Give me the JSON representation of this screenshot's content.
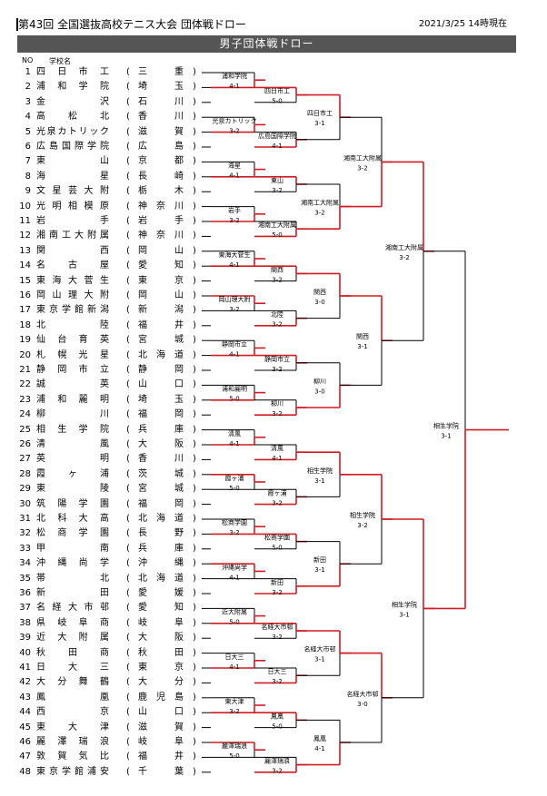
{
  "header": {
    "title": "第43回 全国選抜高校テニス大会 団体戦ドロー",
    "date": "2021/3/25 14時現在",
    "bar_title": "男子団体戦ドロー",
    "col_no": "NO",
    "col_school": "学校名"
  },
  "paren_open": "(",
  "paren_close": ")",
  "entries": [
    {
      "no": "1",
      "school": "四日市工",
      "pref": "三重"
    },
    {
      "no": "2",
      "school": "浦和学院",
      "pref": "埼玉"
    },
    {
      "no": "3",
      "school": "金沢",
      "pref": "石川"
    },
    {
      "no": "4",
      "school": "高松北",
      "pref": "香川"
    },
    {
      "no": "5",
      "school": "光泉カトリック",
      "pref": "滋賀"
    },
    {
      "no": "6",
      "school": "広島国際学院",
      "pref": "広島"
    },
    {
      "no": "7",
      "school": "東山",
      "pref": "京都"
    },
    {
      "no": "8",
      "school": "海星",
      "pref": "長崎"
    },
    {
      "no": "9",
      "school": "文星芸大附",
      "pref": "栃木"
    },
    {
      "no": "10",
      "school": "光明相模原",
      "pref": "神奈川"
    },
    {
      "no": "11",
      "school": "岩手",
      "pref": "岩手"
    },
    {
      "no": "12",
      "school": "湘南工大附属",
      "pref": "神奈川"
    },
    {
      "no": "13",
      "school": "関西",
      "pref": "岡山"
    },
    {
      "no": "14",
      "school": "名古屋",
      "pref": "愛知"
    },
    {
      "no": "15",
      "school": "東海大菅生",
      "pref": "東京"
    },
    {
      "no": "16",
      "school": "岡山理大附",
      "pref": "岡山"
    },
    {
      "no": "17",
      "school": "東京学館新潟",
      "pref": "新潟"
    },
    {
      "no": "18",
      "school": "北陸",
      "pref": "福井"
    },
    {
      "no": "19",
      "school": "仙台育英",
      "pref": "宮城"
    },
    {
      "no": "20",
      "school": "札幌光星",
      "pref": "北海道"
    },
    {
      "no": "21",
      "school": "静岡市立",
      "pref": "静岡"
    },
    {
      "no": "22",
      "school": "誠英",
      "pref": "山口"
    },
    {
      "no": "23",
      "school": "浦和麗明",
      "pref": "埼玉"
    },
    {
      "no": "24",
      "school": "柳川",
      "pref": "福岡"
    },
    {
      "no": "25",
      "school": "相生学院",
      "pref": "兵庫"
    },
    {
      "no": "26",
      "school": "清風",
      "pref": "大阪"
    },
    {
      "no": "27",
      "school": "英明",
      "pref": "香川"
    },
    {
      "no": "28",
      "school": "霞ヶ浦",
      "pref": "茨城"
    },
    {
      "no": "29",
      "school": "東陵",
      "pref": "宮城"
    },
    {
      "no": "30",
      "school": "筑陽学園",
      "pref": "福岡"
    },
    {
      "no": "31",
      "school": "北科大高",
      "pref": "北海道"
    },
    {
      "no": "32",
      "school": "松商学園",
      "pref": "長野"
    },
    {
      "no": "33",
      "school": "甲南",
      "pref": "兵庫"
    },
    {
      "no": "34",
      "school": "沖縄尚学",
      "pref": "沖縄"
    },
    {
      "no": "35",
      "school": "帯北",
      "pref": "北海道"
    },
    {
      "no": "36",
      "school": "新田",
      "pref": "愛媛"
    },
    {
      "no": "37",
      "school": "名経大市邨",
      "pref": "愛知"
    },
    {
      "no": "38",
      "school": "県岐阜商",
      "pref": "岐阜"
    },
    {
      "no": "39",
      "school": "近大附属",
      "pref": "大阪"
    },
    {
      "no": "40",
      "school": "秋田商",
      "pref": "秋田"
    },
    {
      "no": "41",
      "school": "日大三",
      "pref": "東京"
    },
    {
      "no": "42",
      "school": "大分舞鶴",
      "pref": "大分"
    },
    {
      "no": "43",
      "school": "鳳凰",
      "pref": "鹿児島"
    },
    {
      "no": "44",
      "school": "西京",
      "pref": "山口"
    },
    {
      "no": "45",
      "school": "東大津",
      "pref": "滋賀"
    },
    {
      "no": "46",
      "school": "麗澤瑞浪",
      "pref": "岐阜"
    },
    {
      "no": "47",
      "school": "敦賀気比",
      "pref": "福井"
    },
    {
      "no": "48",
      "school": "東京学館浦安",
      "pref": "千葉"
    }
  ],
  "matches": [
    {
      "round": 1,
      "a": 1,
      "b": 2,
      "winner": "浦和学院",
      "score": "4-1",
      "wtop": false
    },
    {
      "round": 1,
      "a": 4,
      "b": 5,
      "winner": "光泉カトリック",
      "score": "3-2",
      "wtop": false
    },
    {
      "round": 1,
      "a": 7,
      "b": 8,
      "winner": "海星",
      "score": "4-1",
      "wtop": false
    },
    {
      "round": 1,
      "a": 10,
      "b": 11,
      "winner": "岩手",
      "score": "3-2",
      "wtop": false
    },
    {
      "round": 1,
      "a": 13,
      "b": 14,
      "winner": "東海大菅生",
      "score": "4-1",
      "wtop": false
    },
    {
      "round": 1,
      "a": 16,
      "b": 17,
      "winner": "岡山理大附",
      "score": "3-2",
      "wtop": true
    },
    {
      "round": 1,
      "a": 19,
      "b": 20,
      "winner": "静岡市立",
      "score": "4-1",
      "wtop": false
    },
    {
      "round": 1,
      "a": 22,
      "b": 23,
      "winner": "浦和麗明",
      "score": "5-0",
      "wtop": false
    },
    {
      "round": 1,
      "a": 25,
      "b": 26,
      "winner": "清風",
      "score": "4-1",
      "wtop": false
    },
    {
      "round": 1,
      "a": 28,
      "b": 29,
      "winner": "霞ヶ浦",
      "score": "5-0",
      "wtop": true
    },
    {
      "round": 1,
      "a": 31,
      "b": 32,
      "winner": "松商学園",
      "score": "3-2",
      "wtop": false
    },
    {
      "round": 1,
      "a": 34,
      "b": 35,
      "winner": "沖縄尚学",
      "score": "4-1",
      "wtop": true
    },
    {
      "round": 1,
      "a": 37,
      "b": 38,
      "winner": "近大附属",
      "score": "5-0",
      "wtop": false
    },
    {
      "round": 1,
      "a": 40,
      "b": 41,
      "winner": "日大三",
      "score": "4-1",
      "wtop": false
    },
    {
      "round": 1,
      "a": 43,
      "b": 44,
      "winner": "東大津",
      "score": "3-2",
      "wtop": false
    },
    {
      "round": 1,
      "a": 46,
      "b": 47,
      "winner": "麗澤瑞浪",
      "score": "5-0",
      "wtop": true
    },
    {
      "round": 2,
      "a": 3,
      "b": 5,
      "winner": "四日市工",
      "score": "5-0",
      "wtop": true
    },
    {
      "round": 2,
      "a": 9,
      "b": 11,
      "winner": "広島国際学院",
      "score": "4-1",
      "wtop": false
    },
    {
      "round": 2,
      "a": 15,
      "b": 17,
      "winner": "東山",
      "score": "3-2",
      "wtop": true
    },
    {
      "round": 2,
      "a": 21,
      "b": 23,
      "winner": "湘南工大附属",
      "score": "5-0",
      "wtop": false
    },
    {
      "round": 2,
      "a": 27,
      "b": 29,
      "winner": "関西",
      "score": "3-2",
      "wtop": true
    },
    {
      "round": 2,
      "a": 33,
      "b": 35,
      "winner": "北陸",
      "score": "3-2",
      "wtop": false
    },
    {
      "round": 2,
      "a": 39,
      "b": 41,
      "winner": "静岡市立",
      "score": "3-2",
      "wtop": true
    },
    {
      "round": 2,
      "a": 45,
      "b": 47,
      "winner": "柳川",
      "score": "3-2",
      "wtop": false
    },
    {
      "round": 2,
      "a": 51,
      "b": 53,
      "winner": "清風",
      "score": "4-1",
      "wtop": false
    },
    {
      "round": 2,
      "a": 57,
      "b": 59,
      "winner": "霞ヶ浦",
      "score": "3-2",
      "wtop": false
    },
    {
      "round": 2,
      "a": 63,
      "b": 65,
      "winner": "松商学園",
      "score": "5-0",
      "wtop": true
    },
    {
      "round": 2,
      "a": 69,
      "b": 71,
      "winner": "新田",
      "score": "3-2",
      "wtop": false
    },
    {
      "round": 2,
      "a": 75,
      "b": 77,
      "winner": "名経大市邨",
      "score": "3-2",
      "wtop": true
    },
    {
      "round": 2,
      "a": 81,
      "b": 83,
      "winner": "日大三",
      "score": "3-2",
      "wtop": false
    },
    {
      "round": 2,
      "a": 87,
      "b": 89,
      "winner": "鳳凰",
      "score": "5-0",
      "wtop": true
    },
    {
      "round": 2,
      "a": 93,
      "b": 95,
      "winner": "麗澤瑞浪",
      "score": "3-2",
      "wtop": false
    },
    {
      "round": 3,
      "a": 4,
      "b": 10,
      "winner": "四日市工",
      "score": "3-1",
      "wtop": true
    },
    {
      "round": 3,
      "a": 16,
      "b": 22,
      "winner": "湘南工大附属",
      "score": "3-2",
      "wtop": false
    },
    {
      "round": 3,
      "a": 28,
      "b": 34,
      "winner": "関西",
      "score": "3-0",
      "wtop": true
    },
    {
      "round": 3,
      "a": 40,
      "b": 46,
      "winner": "柳川",
      "score": "3-0",
      "wtop": false
    },
    {
      "round": 3,
      "a": 52,
      "b": 58,
      "winner": "相生学院",
      "score": "3-1",
      "wtop": true
    },
    {
      "round": 3,
      "a": 64,
      "b": 70,
      "winner": "新田",
      "score": "3-1",
      "wtop": false
    },
    {
      "round": 3,
      "a": 76,
      "b": 82,
      "winner": "名経大市邨",
      "score": "3-1",
      "wtop": true
    },
    {
      "round": 3,
      "a": 88,
      "b": 94,
      "winner": "鳳凰",
      "score": "4-1",
      "wtop": false
    },
    {
      "round": 4,
      "a": 7,
      "b": 19,
      "winner": "湘南工大附属",
      "score": "3-2",
      "wtop": false
    },
    {
      "round": 4,
      "a": 31,
      "b": 43,
      "winner": "関西",
      "score": "3-1",
      "wtop": true
    },
    {
      "round": 4,
      "a": 55,
      "b": 67,
      "winner": "相生学院",
      "score": "3-2",
      "wtop": true
    },
    {
      "round": 4,
      "a": 79,
      "b": 91,
      "winner": "名経大市邨",
      "score": "3-0",
      "wtop": true
    },
    {
      "round": 5,
      "a": 13,
      "b": 37,
      "winner": "湘南工大附属",
      "score": "3-2",
      "wtop": true
    },
    {
      "round": 5,
      "a": 61,
      "b": 85,
      "winner": "相生学院",
      "score": "3-1",
      "wtop": true
    },
    {
      "round": 6,
      "a": 25,
      "b": 73,
      "winner": "相生学院",
      "score": "3-1",
      "wtop": false
    }
  ]
}
